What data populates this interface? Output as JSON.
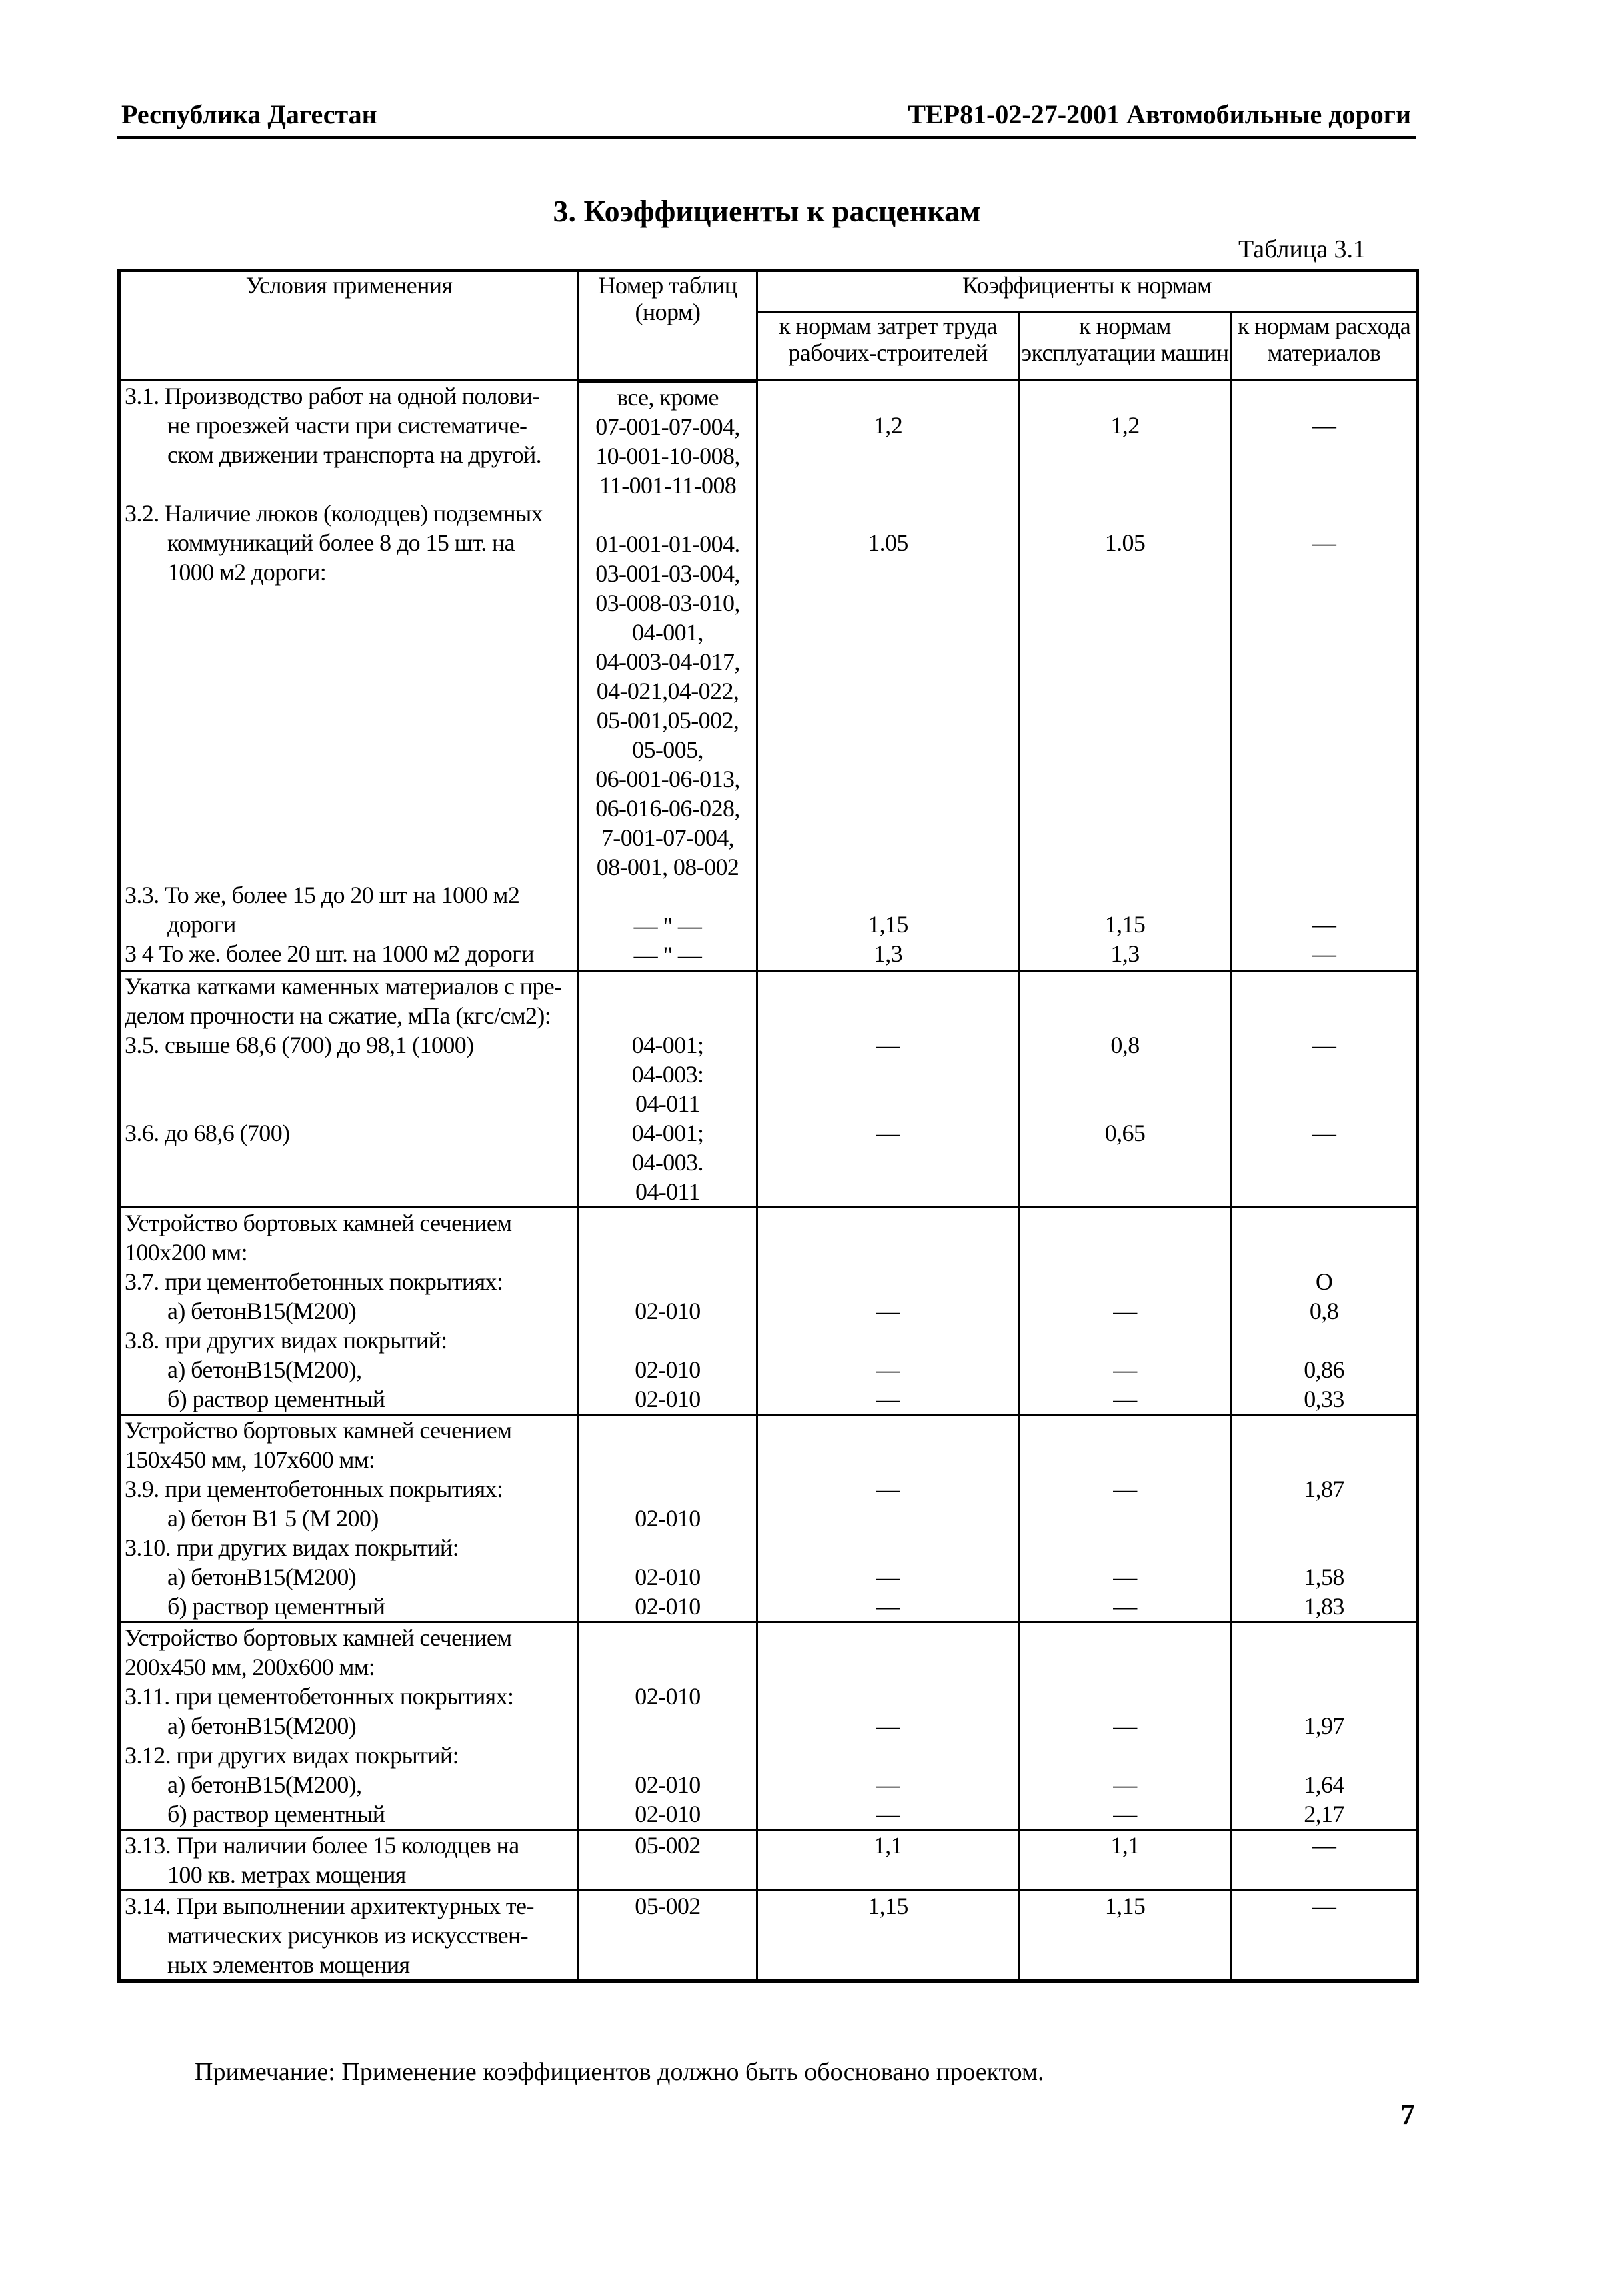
{
  "header": {
    "left": "Республика Дагестан",
    "right": "ТЕР81-02-27-2001 Автомобильные дороги"
  },
  "title": "3. Коэффициенты к расценкам",
  "table_label": "Таблица 3.1",
  "table": {
    "columns": {
      "conditions": "Условия применения",
      "table_number": "Номер таблиц (норм)",
      "coefficients": "Коэффициенты к нормам",
      "labor": "к нормам затрет труда рабочих-строителей",
      "machines": "к нормам эксплуатации машин",
      "materials": "к нормам расхода материалов"
    },
    "groups": [
      {
        "lines": [
          [
            "3.1. Производство работ на одной полови-",
            "все, кроме",
            "",
            "",
            ""
          ],
          [
            "не проезжей части при систематиче-",
            "07-001-07-004,",
            "1,2",
            "1,2",
            "—"
          ],
          [
            "ском движении транспорта на другой.",
            "10-001-10-008,",
            "",
            "",
            ""
          ],
          [
            "",
            "11-001-11-008",
            "",
            "",
            ""
          ],
          [
            "3.2. Наличие люков (колодцев) подземных",
            "",
            "",
            "",
            ""
          ],
          [
            "коммуникаций более 8 до 15 шт. на",
            "01-001-01-004.",
            "1.05",
            "1.05",
            "—"
          ],
          [
            "1000 м2 дороги:",
            "03-001-03-004,",
            "",
            "",
            ""
          ],
          [
            "",
            "03-008-03-010,",
            "",
            "",
            ""
          ],
          [
            "",
            "04-001,",
            "",
            "",
            ""
          ],
          [
            "",
            "04-003-04-017,",
            "",
            "",
            ""
          ],
          [
            "",
            "04-021,04-022,",
            "",
            "",
            ""
          ],
          [
            "",
            "05-001,05-002,",
            "",
            "",
            ""
          ],
          [
            "",
            "05-005,",
            "",
            "",
            ""
          ],
          [
            "",
            "06-001-06-013,",
            "",
            "",
            ""
          ],
          [
            "",
            "06-016-06-028,",
            "",
            "",
            ""
          ],
          [
            "",
            "7-001-07-004,",
            "",
            "",
            ""
          ],
          [
            "",
            "08-001, 08-002",
            "",
            "",
            ""
          ],
          [
            "3.3. То же, более 15 до 20 шт на 1000 м2",
            "",
            "",
            "",
            ""
          ],
          [
            "дороги",
            "— \" —",
            "1,15",
            "1,15",
            "—"
          ],
          [
            "3 4  То же. более 20 шт. на 1000 м2 дороги",
            "— \" —",
            "1,3",
            "1,3",
            "—"
          ]
        ]
      },
      {
        "lines": [
          [
            "Укатка катками каменных материалов с пре-",
            "",
            "",
            "",
            ""
          ],
          [
            "делом прочности на сжатие, мПа (кгс/см2):",
            "",
            "",
            "",
            ""
          ],
          [
            "3.5. свыше 68,6 (700) до 98,1 (1000)",
            "04-001;",
            "—",
            "0,8",
            "—"
          ],
          [
            "",
            "04-003:",
            "",
            "",
            ""
          ],
          [
            "",
            "04-011",
            "",
            "",
            ""
          ],
          [
            "3.6. до 68,6 (700)",
            "04-001;",
            "—",
            "0,65",
            "—"
          ],
          [
            "",
            "04-003.",
            "",
            "",
            ""
          ],
          [
            "",
            "04-011",
            "",
            "",
            ""
          ]
        ]
      },
      {
        "lines": [
          [
            "Устройство бортовых камней сечением",
            "",
            "",
            "",
            ""
          ],
          [
            "100х200 мм:",
            "",
            "",
            "",
            ""
          ],
          [
            "3.7. при цементобетонных покрытиях:",
            "",
            "",
            "",
            "О"
          ],
          [
            "а) бетонВ15(М200)",
            "02-010",
            "—",
            "—",
            "0,8"
          ],
          [
            "3.8. при других видах покрытий:",
            "",
            "",
            "",
            ""
          ],
          [
            "а) бетонВ15(М200),",
            "02-010",
            "—",
            "—",
            "0,86"
          ],
          [
            "б) раствор цементный",
            "02-010",
            "—",
            "—",
            "0,33"
          ]
        ]
      },
      {
        "lines": [
          [
            "Устройство бортовых камней сечением",
            "",
            "",
            "",
            ""
          ],
          [
            "150х450 мм, 107х600 мм:",
            "",
            "",
            "",
            ""
          ],
          [
            "3.9. при цементобетонных покрытиях:",
            "",
            "—",
            "—",
            "1,87"
          ],
          [
            "а) бетон В1 5 (М 200)",
            "02-010",
            "",
            "",
            ""
          ],
          [
            "3.10. при других видах покрытий:",
            "",
            "",
            "",
            ""
          ],
          [
            "а) бетонВ15(М200)",
            "02-010",
            "—",
            "—",
            "1,58"
          ],
          [
            "б) раствор цементный",
            "02-010",
            "—",
            "—",
            "1,83"
          ]
        ]
      },
      {
        "lines": [
          [
            "Устройство бортовых камней сечением",
            "",
            "",
            "",
            ""
          ],
          [
            "200х450 мм, 200х600 мм:",
            "",
            "",
            "",
            ""
          ],
          [
            "3.11. при цементобетонных покрытиях:",
            "02-010",
            "",
            "",
            ""
          ],
          [
            "а) бетонВ15(М200)",
            "",
            "—",
            "—",
            "1,97"
          ],
          [
            "3.12. при других видах покрытий:",
            "",
            "",
            "",
            ""
          ],
          [
            "а) бетонВ15(М200),",
            "02-010",
            "—",
            "—",
            "1,64"
          ],
          [
            "б) раствор цементный",
            "02-010",
            "—",
            "—",
            "2,17"
          ]
        ]
      },
      {
        "lines": [
          [
            "3.13. При наличии более 15 колодцев на",
            "05-002",
            "1,1",
            "1,1",
            "—"
          ],
          [
            "100 кв. метрах мощения",
            "",
            "",
            "",
            ""
          ]
        ]
      },
      {
        "lines": [
          [
            "3.14. При выполнении архитектурных те-",
            "05-002",
            "1,15",
            "1,15",
            "—"
          ],
          [
            "матических рисунков из искусствен-",
            "",
            "",
            "",
            ""
          ],
          [
            "ных элементов мощения",
            "",
            "",
            "",
            ""
          ]
        ]
      }
    ]
  },
  "note": "Примечание: Применение коэффициентов должно быть обосновано проектом.",
  "page_number": "7"
}
